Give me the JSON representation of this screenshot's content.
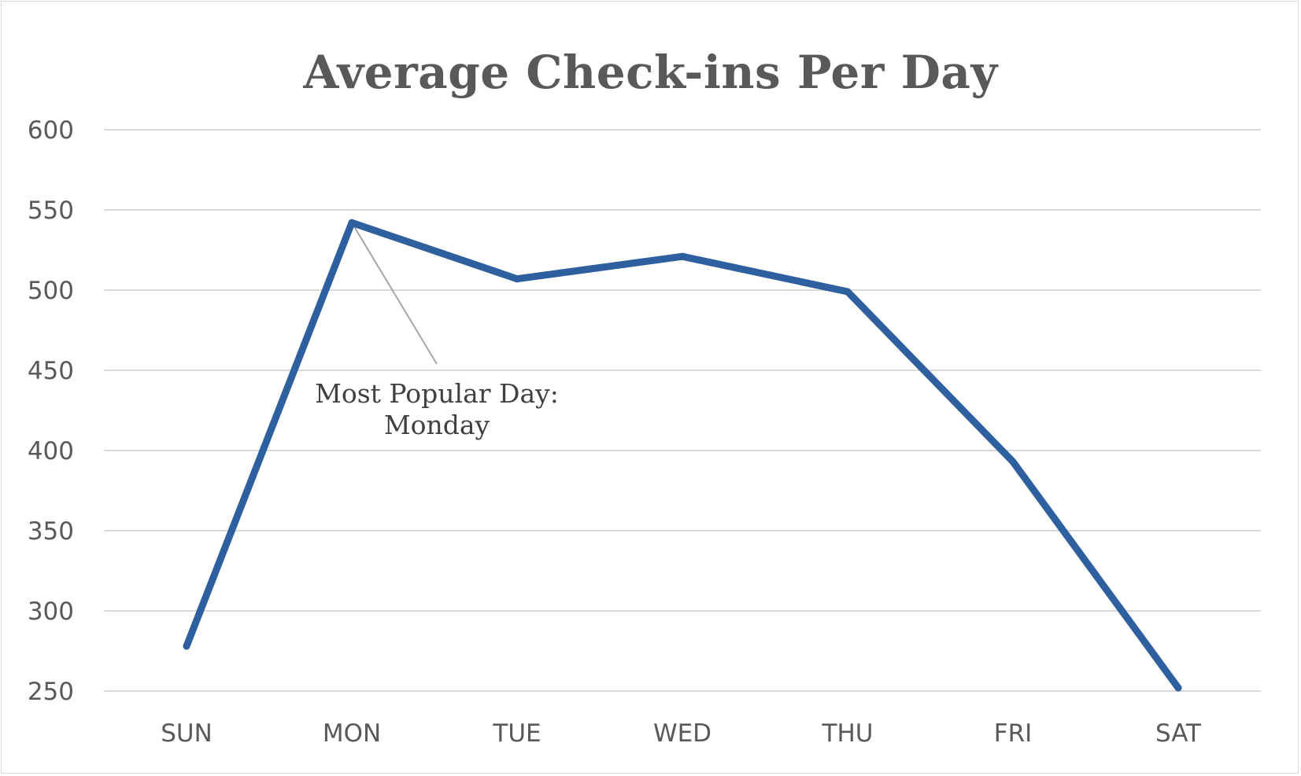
{
  "chart_data": {
    "type": "line",
    "title": "Average Check-ins Per Day",
    "xlabel": "",
    "ylabel": "",
    "categories": [
      "SUN",
      "MON",
      "TUE",
      "WED",
      "THU",
      "FRI",
      "SAT"
    ],
    "series": [
      {
        "name": "Average Check-ins",
        "values": [
          278,
          542,
          507,
          521,
          499,
          393,
          252
        ],
        "color": "#2e5f9e"
      }
    ],
    "ylim": [
      250,
      600
    ],
    "yticks": [
      600,
      550,
      500,
      450,
      400,
      350,
      300,
      250
    ],
    "grid": true,
    "annotation": {
      "line1": "Most Popular Day:",
      "line2": "Monday",
      "category": "MON"
    },
    "colors": {
      "gridline": "#d9d9d9",
      "text": "#595959",
      "leader": "#a6a6a6"
    }
  }
}
